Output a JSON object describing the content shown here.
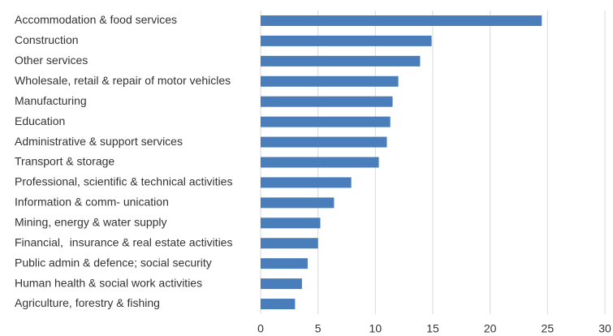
{
  "chart_data": {
    "type": "barh",
    "categories": [
      "Accommodation & food services",
      "Construction",
      "Other services",
      "Wholesale, retail & repair of motor vehicles",
      "Manufacturing",
      "Education",
      "Administrative & support services",
      "Transport & storage",
      "Professional, scientific & technical activities",
      "Information & comm- unication",
      "Mining, energy & water supply",
      "Financial,  insurance & real estate activities",
      "Public admin & defence; social security",
      "Human health & social work activities",
      "Agriculture, forestry & fishing"
    ],
    "values": [
      24.5,
      14.9,
      13.9,
      12.0,
      11.5,
      11.3,
      11.0,
      10.3,
      7.9,
      6.4,
      5.2,
      5.0,
      4.1,
      3.6,
      3.0
    ],
    "color": "#4a7ebb",
    "xlim": [
      0,
      30
    ],
    "xticks": [
      0,
      5,
      10,
      15,
      20,
      25,
      30
    ],
    "grid": true
  }
}
